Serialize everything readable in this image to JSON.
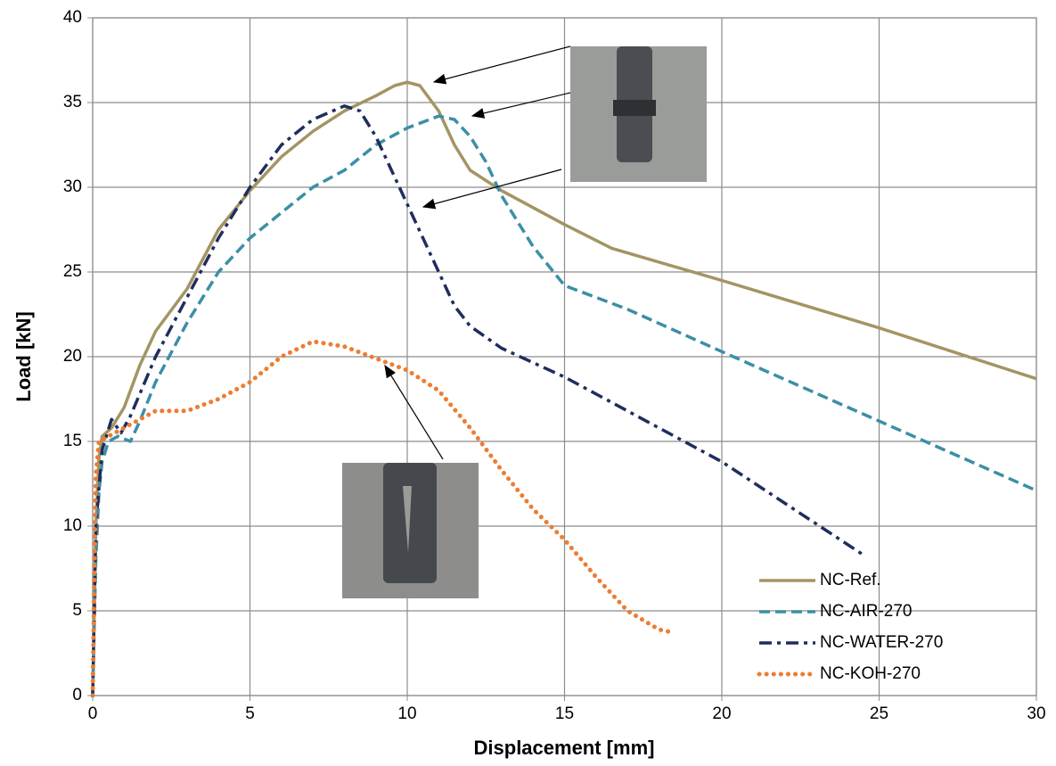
{
  "chart_data": {
    "type": "line",
    "x_label": "Displacement [mm]",
    "y_label": "Load [kN]",
    "xlim": [
      0,
      30
    ],
    "xticks": [
      0,
      5,
      10,
      15,
      20,
      25,
      30
    ],
    "ylim": [
      0,
      40
    ],
    "yticks": [
      0,
      5,
      10,
      15,
      20,
      25,
      30,
      35,
      40
    ],
    "grid": true,
    "legend": "lower right",
    "series": [
      {
        "name": "NC-Ref.",
        "color": "#a39563",
        "style": "solid",
        "x": [
          0,
          0.1,
          0.2,
          0.3,
          0.6,
          1,
          1.5,
          2,
          3,
          4,
          5,
          6,
          7,
          8,
          9,
          9.6,
          10,
          10.4,
          11,
          11.5,
          12,
          13,
          15,
          16.5,
          20,
          25,
          30
        ],
        "values": [
          0,
          10,
          14,
          15.3,
          15.8,
          17,
          19.5,
          21.5,
          24,
          27.5,
          29.8,
          31.8,
          33.3,
          34.5,
          35.4,
          36,
          36.2,
          36,
          34.5,
          32.5,
          31,
          29.8,
          27.8,
          26.4,
          24.5,
          21.7,
          18.7
        ]
      },
      {
        "name": "NC-AIR-270",
        "color": "#3b8fa6",
        "style": "dashed",
        "x": [
          0,
          0.1,
          0.2,
          0.3,
          0.5,
          0.8,
          1.2,
          1.5,
          2,
          3,
          4,
          5,
          6,
          7,
          8,
          9,
          10,
          11,
          11.5,
          12,
          12.5,
          13,
          14,
          15,
          17,
          20,
          25,
          30
        ],
        "values": [
          0,
          8,
          12,
          13.8,
          15,
          15.3,
          15,
          16.2,
          18.5,
          22,
          25,
          27,
          28.5,
          30,
          31,
          32.5,
          33.5,
          34.2,
          34,
          33,
          31.5,
          29.5,
          26.5,
          24.2,
          22.8,
          20.3,
          16.2,
          12.1
        ]
      },
      {
        "name": "NC-WATER-270",
        "color": "#1f2d5e",
        "style": "dashdot",
        "x": [
          0,
          0.1,
          0.3,
          0.6,
          0.9,
          1.2,
          2,
          3,
          4,
          5,
          6,
          7,
          8,
          8.5,
          9,
          9.5,
          10,
          10.5,
          11,
          11.5,
          12,
          13,
          15,
          20,
          24.5
        ],
        "values": [
          0,
          10,
          14.5,
          16.3,
          15.5,
          16.5,
          20,
          23.5,
          27,
          30,
          32.5,
          34,
          34.8,
          34.5,
          33,
          31,
          29,
          27,
          25,
          23,
          21.8,
          20.5,
          18.8,
          13.8,
          8.3
        ]
      },
      {
        "name": "NC-KOH-270",
        "color": "#ed7d31",
        "style": "dotted",
        "x": [
          0,
          0.1,
          0.2,
          0.5,
          1,
          2,
          3,
          4,
          5,
          6,
          7,
          8,
          9,
          10,
          11,
          12,
          13,
          14,
          15,
          16,
          17,
          18,
          18.5
        ],
        "values": [
          0,
          13,
          15,
          15.3,
          15.8,
          16.8,
          16.8,
          17.5,
          18.5,
          20,
          20.9,
          20.6,
          19.9,
          19.2,
          18,
          15.8,
          13.3,
          11,
          9.2,
          7,
          5,
          3.9,
          3.7
        ]
      }
    ]
  }
}
